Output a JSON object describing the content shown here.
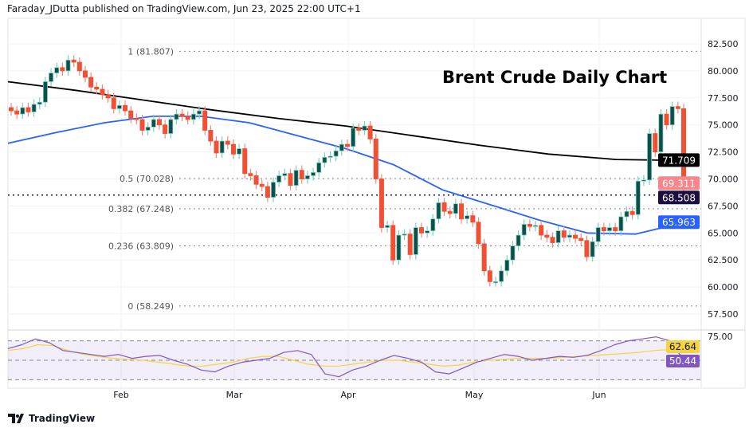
{
  "header": {
    "text": "Faraday_JDutta published on TradingView.com, Jun 23, 2025 22:00 UTC+1"
  },
  "footer": {
    "logo_text": "TradingView",
    "logo_icon": "tradingview-logo-icon"
  },
  "chart_data": {
    "type": "candlestick",
    "title": "Brent Crude Daily Chart",
    "ylim": [
      57.5,
      82.5
    ],
    "y_ticks": [
      "82.500",
      "80.000",
      "77.500",
      "75.000",
      "72.500",
      "70.000",
      "67.500",
      "65.000",
      "62.500",
      "60.000",
      "57.500"
    ],
    "x_ticks": [
      "Feb",
      "Mar",
      "Apr",
      "May",
      "Jun"
    ],
    "grid": true,
    "colors": {
      "up": "#0f4f4a",
      "up_wick": "#7fcfbf",
      "down": "#f05033",
      "down_wick": "#f08a80",
      "ma200": "#000000",
      "ma50": "#2962ff",
      "rsi": "#7e57c2",
      "rsi_ma": "#f5d442"
    },
    "closes": [
      76.3,
      76.0,
      76.6,
      76.2,
      76.9,
      77.1,
      79.0,
      79.8,
      80.3,
      80.0,
      81.0,
      80.8,
      80.0,
      79.4,
      78.5,
      78.3,
      77.8,
      77.5,
      76.5,
      76.8,
      76.3,
      75.6,
      75.5,
      74.5,
      74.8,
      75.5,
      75.0,
      74.2,
      75.5,
      76.0,
      75.8,
      75.5,
      76.0,
      76.3,
      74.5,
      73.5,
      72.4,
      73.5,
      73.2,
      72.3,
      72.8,
      70.5,
      70.3,
      69.5,
      69.3,
      68.3,
      69.7,
      70.3,
      70.5,
      69.4,
      70.8,
      70.0,
      70.3,
      70.6,
      71.5,
      72.0,
      72.1,
      72.6,
      73.2,
      73.0,
      74.7,
      74.5,
      74.9,
      73.7,
      70.0,
      65.5,
      65.7,
      62.5,
      64.8,
      64.9,
      63.0,
      65.5,
      65.0,
      65.2,
      66.3,
      67.8,
      67.0,
      66.8,
      67.7,
      66.3,
      66.6,
      66.0,
      64.0,
      61.5,
      60.5,
      60.5,
      61.5,
      62.5,
      63.8,
      64.8,
      65.8,
      65.6,
      65.7,
      64.8,
      64.6,
      64.1,
      65.2,
      64.6,
      64.8,
      64.5,
      64.3,
      62.8,
      64.2,
      65.5,
      65.2,
      65.5,
      65.2,
      66.5,
      67.0,
      66.7,
      69.8,
      69.9,
      74.2,
      72.5,
      76.0,
      75.0,
      76.7,
      76.5,
      69.3
    ],
    "ma200": [
      79.0,
      78.2,
      77.3,
      76.4,
      75.6,
      74.9,
      74.0,
      73.1,
      72.3,
      71.8,
      71.709
    ],
    "ma50": [
      73.3,
      74.3,
      75.2,
      75.8,
      75.8,
      75.2,
      74.0,
      72.8,
      71.3,
      69.0,
      67.6,
      66.2,
      65.0,
      64.9,
      65.963
    ],
    "rsi": [
      62,
      66,
      72,
      68,
      60,
      58,
      56,
      54,
      56,
      52,
      54,
      55,
      50,
      46,
      40,
      38,
      44,
      48,
      50,
      52,
      58,
      60,
      56,
      36,
      33,
      40,
      44,
      50,
      55,
      52,
      48,
      38,
      36,
      42,
      48,
      52,
      56,
      54,
      50,
      52,
      54,
      53,
      55,
      60,
      66,
      70,
      72,
      74,
      70,
      50.44
    ],
    "rsi_ma": [
      60,
      62,
      66,
      65,
      60,
      56,
      54,
      52,
      51,
      50,
      48,
      46,
      44,
      44,
      46,
      48,
      52,
      54,
      54,
      50,
      46,
      44,
      44,
      46,
      48,
      50,
      50,
      48,
      46,
      44,
      45,
      48,
      50,
      51,
      52,
      52,
      52,
      53,
      54,
      55,
      56,
      57,
      58,
      60,
      61,
      62.64
    ],
    "rsi_axis_label": "75.00",
    "rsi_levels": [
      70,
      50,
      30
    ],
    "fib_levels": [
      {
        "label": "1 (81.807)",
        "value": 81.807
      },
      {
        "label": "0.5 (70.028)",
        "value": 70.028
      },
      {
        "label": "0.382 (67.248)",
        "value": 67.248
      },
      {
        "label": "0.236 (63.809)",
        "value": 63.809
      },
      {
        "label": "0 (58.249)",
        "value": 58.249
      }
    ],
    "support_line": 68.508,
    "price_labels": [
      {
        "text": "71.709",
        "value": 71.709,
        "bg": "#000000",
        "fg": "#ffffff"
      },
      {
        "text": "69.311",
        "value": 69.311,
        "bg": "#f7858a",
        "fg": "#ffffff"
      },
      {
        "text": "68.508",
        "value": 68.508,
        "bg": "#1c0f3f",
        "fg": "#ffffff"
      },
      {
        "text": "65.963",
        "value": 65.963,
        "bg": "#2962ff",
        "fg": "#ffffff"
      }
    ],
    "rsi_labels": [
      {
        "text": "62.64",
        "value": 62.64,
        "bg": "#f5d442",
        "fg": "#131722"
      },
      {
        "text": "50.44",
        "value": 50.44,
        "bg": "#7e57c2",
        "fg": "#ffffff"
      }
    ]
  }
}
